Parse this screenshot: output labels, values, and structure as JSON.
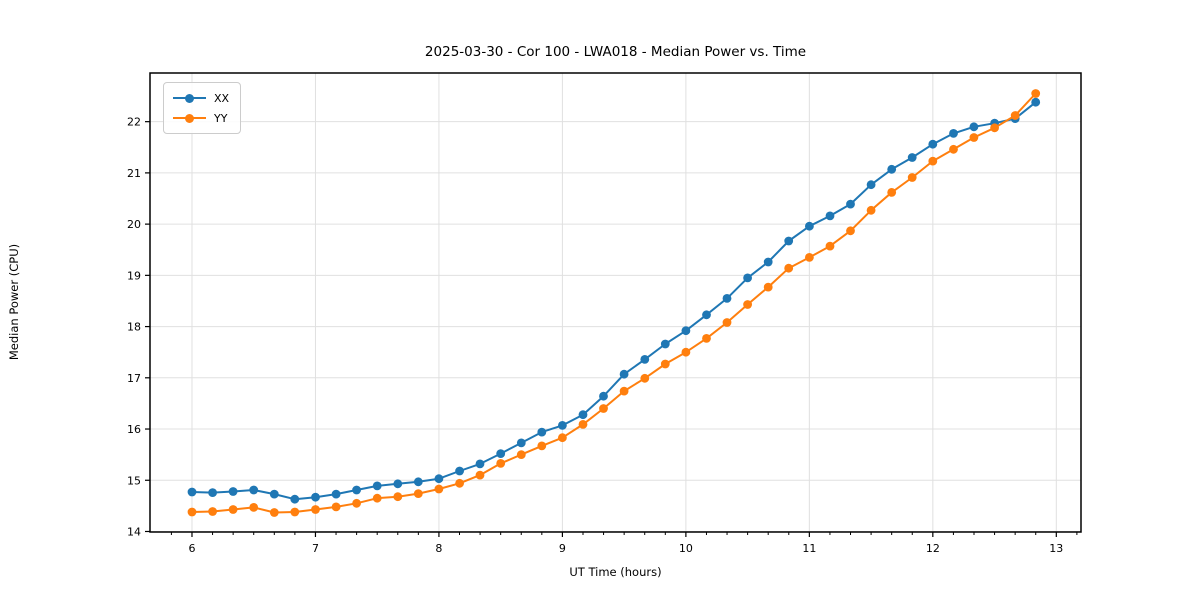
{
  "chart_data": {
    "type": "line",
    "title": "2025-03-30 - Cor 100 - LWA018 - Median Power vs. Time",
    "xlabel": "UT Time (hours)",
    "ylabel": "Median Power (CPU)",
    "xlim": [
      5.66,
      13.2
    ],
    "ylim": [
      13.99,
      22.95
    ],
    "x_ticks": [
      6,
      7,
      8,
      9,
      10,
      11,
      12,
      13
    ],
    "y_ticks": [
      14,
      15,
      16,
      17,
      18,
      19,
      20,
      21,
      22
    ],
    "x_minor_step": 0.166667,
    "grid": true,
    "grid_color": "#e0e0e0",
    "legend_position": "upper left",
    "x": [
      6.0,
      6.167,
      6.333,
      6.5,
      6.667,
      6.833,
      7.0,
      7.167,
      7.333,
      7.5,
      7.667,
      7.833,
      8.0,
      8.167,
      8.333,
      8.5,
      8.667,
      8.833,
      9.0,
      9.167,
      9.333,
      9.5,
      9.667,
      9.833,
      10.0,
      10.167,
      10.333,
      10.5,
      10.667,
      10.833,
      11.0,
      11.167,
      11.333,
      11.5,
      11.667,
      11.833,
      12.0,
      12.167,
      12.333,
      12.5,
      12.667,
      12.833
    ],
    "series": [
      {
        "name": "XX",
        "color": "#1f77b4",
        "values": [
          14.77,
          14.76,
          14.78,
          14.81,
          14.73,
          14.63,
          14.67,
          14.73,
          14.81,
          14.89,
          14.93,
          14.97,
          15.03,
          15.18,
          15.32,
          15.52,
          15.73,
          15.94,
          16.07,
          16.28,
          16.64,
          17.07,
          17.36,
          17.66,
          17.92,
          18.23,
          18.55,
          18.95,
          19.26,
          19.67,
          19.96,
          20.16,
          20.39,
          20.77,
          21.07,
          21.3,
          21.56,
          21.77,
          21.9,
          21.97,
          22.06,
          22.38
        ]
      },
      {
        "name": "YY",
        "color": "#ff7f0e",
        "values": [
          14.38,
          14.39,
          14.43,
          14.47,
          14.37,
          14.38,
          14.43,
          14.48,
          14.55,
          14.65,
          14.68,
          14.74,
          14.83,
          14.94,
          15.1,
          15.33,
          15.5,
          15.67,
          15.83,
          16.09,
          16.4,
          16.74,
          16.99,
          17.27,
          17.5,
          17.77,
          18.08,
          18.43,
          18.77,
          19.14,
          19.35,
          19.57,
          19.87,
          20.27,
          20.62,
          20.91,
          21.23,
          21.46,
          21.69,
          21.88,
          22.12,
          22.55
        ]
      }
    ]
  }
}
